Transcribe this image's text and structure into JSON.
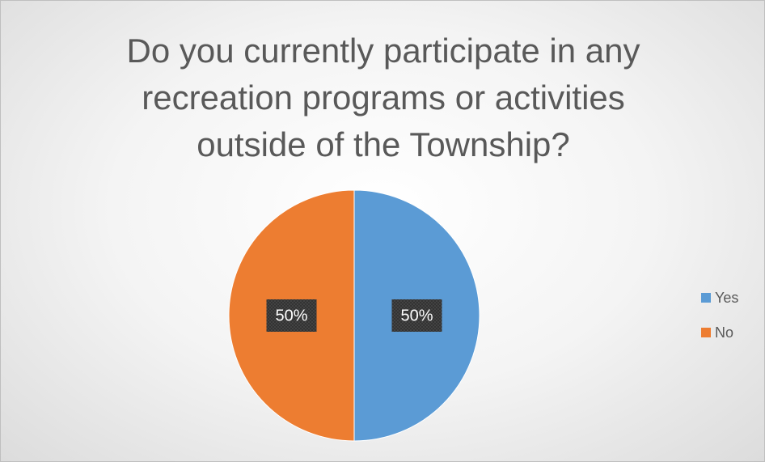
{
  "chart_data": {
    "type": "pie",
    "title": "Do you currently participate in any recreation programs or activities outside of the Township?",
    "categories": [
      "Yes",
      "No"
    ],
    "values": [
      50,
      50
    ],
    "value_labels": [
      "50%",
      "50%"
    ],
    "colors": [
      "#5b9bd5",
      "#ed7d31"
    ],
    "legend": "right"
  }
}
